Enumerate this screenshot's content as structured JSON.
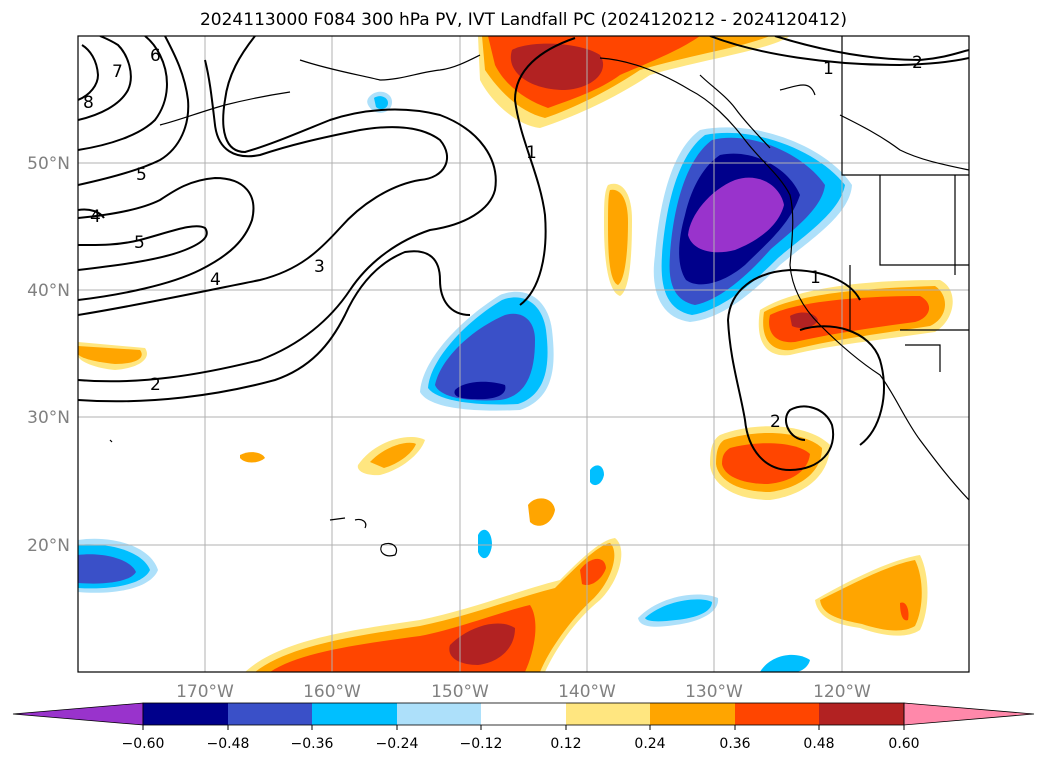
{
  "title": "2024113000 F084 300 hPa PV, IVT Landfall PC (2024120212 - 2024120412)",
  "lat_labels": [
    "50°N",
    "40°N",
    "30°N",
    "20°N"
  ],
  "lon_labels": [
    "170°W",
    "160°W",
    "150°W",
    "140°W",
    "130°W",
    "120°W"
  ],
  "contour_labels": [
    "1",
    "1",
    "1",
    "2",
    "2",
    "2",
    "3",
    "4",
    "4",
    "5",
    "5",
    "6",
    "7",
    "8"
  ],
  "colorbar": {
    "tick_labels": [
      "−0.60",
      "−0.48",
      "−0.36",
      "−0.24",
      "−0.12",
      "0.12",
      "0.24",
      "0.36",
      "0.48",
      "0.60"
    ],
    "colors": [
      "#9933cc",
      "#00008b",
      "#3a50c8",
      "#00bfff",
      "#ade0fa",
      "#ffffff",
      "#ffe680",
      "#ffa500",
      "#ff4500",
      "#b22222",
      "#ff88aa"
    ]
  },
  "map_extent": {
    "lon_min": -180,
    "lon_max": -110,
    "lat_min": 10,
    "lat_max": 60
  },
  "colors": {
    "purple": "#9933cc",
    "navy": "#00008b",
    "blue": "#3a50c8",
    "cyan": "#00bfff",
    "light_blue": "#ade0fa",
    "yellow": "#ffe680",
    "orange": "#ffa500",
    "red_orange": "#ff4500",
    "dark_red": "#b22222",
    "grid": "#b0b0b0",
    "coast": "#000000"
  }
}
